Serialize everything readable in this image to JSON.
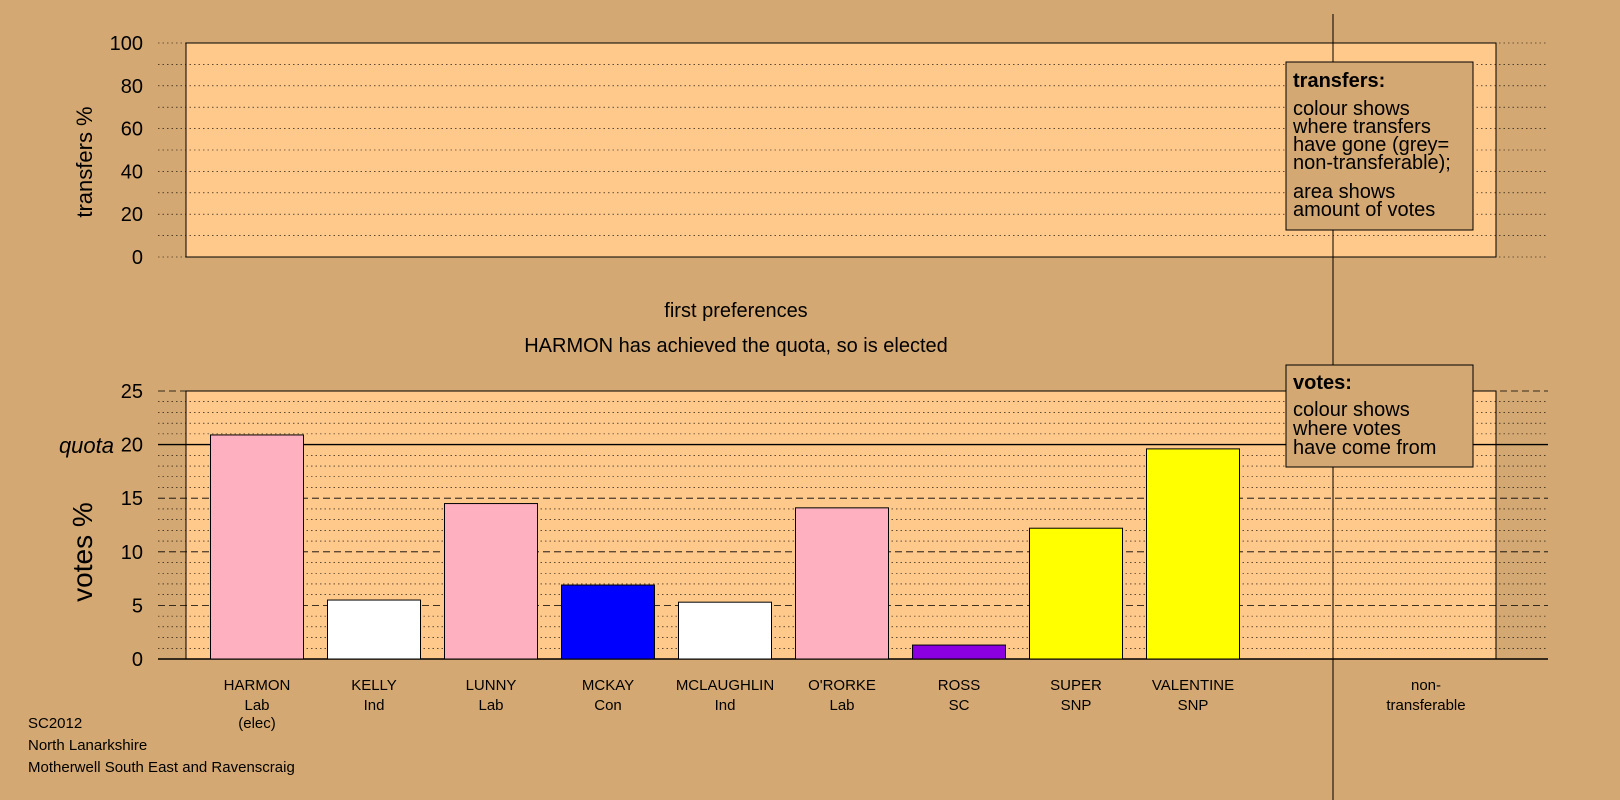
{
  "upper_panel": {
    "ylabel": "transfers %",
    "y_ticks": [
      "0",
      "20",
      "40",
      "60",
      "80",
      "100"
    ]
  },
  "caption": {
    "stage": "first preferences",
    "status": "HARMON has achieved the quota, so is elected"
  },
  "legend_transfers": {
    "title": "transfers:",
    "lines1": [
      "colour shows",
      "where transfers",
      "have gone (grey=",
      "non-transferable);"
    ],
    "lines2": [
      "area shows",
      "amount of votes"
    ]
  },
  "legend_votes": {
    "title": "votes:",
    "lines": [
      "colour shows",
      "where votes",
      "have come from"
    ]
  },
  "quota_label": "quota",
  "non_transferable": [
    "non-",
    "transferable"
  ],
  "footer": [
    "SC2012",
    "North Lanarkshire",
    "Motherwell South East and Ravenscraig"
  ],
  "colors": {
    "background": "#D4A872",
    "plot_area": "#FFC98C",
    "Lab": "#FFB0C0",
    "Ind": "#FFFFFF",
    "Con": "#0000FF",
    "SC": "#8B00E0",
    "SNP": "#FFFF00"
  },
  "chart_data": {
    "type": "bar",
    "ylabel": "votes %",
    "ylim": [
      0,
      25
    ],
    "y_ticks": [
      0,
      5,
      10,
      15,
      20,
      25
    ],
    "quota": 20,
    "candidates": [
      {
        "name": "HARMON",
        "party": "Lab",
        "note": "(elec)",
        "value": 20.9,
        "color": "#FFB0C0"
      },
      {
        "name": "KELLY",
        "party": "Ind",
        "note": "",
        "value": 5.5,
        "color": "#FFFFFF"
      },
      {
        "name": "LUNNY",
        "party": "Lab",
        "note": "",
        "value": 14.5,
        "color": "#FFB0C0"
      },
      {
        "name": "MCKAY",
        "party": "Con",
        "note": "",
        "value": 6.9,
        "color": "#0000FF"
      },
      {
        "name": "MCLAUGHLIN",
        "party": "Ind",
        "note": "",
        "value": 5.3,
        "color": "#FFFFFF"
      },
      {
        "name": "O'RORKE",
        "party": "Lab",
        "note": "",
        "value": 14.1,
        "color": "#FFB0C0"
      },
      {
        "name": "ROSS",
        "party": "SC",
        "note": "",
        "value": 1.3,
        "color": "#8B00E0"
      },
      {
        "name": "SUPER",
        "party": "SNP",
        "note": "",
        "value": 12.2,
        "color": "#FFFF00"
      },
      {
        "name": "VALENTINE",
        "party": "SNP",
        "note": "",
        "value": 19.6,
        "color": "#FFFF00"
      }
    ]
  }
}
